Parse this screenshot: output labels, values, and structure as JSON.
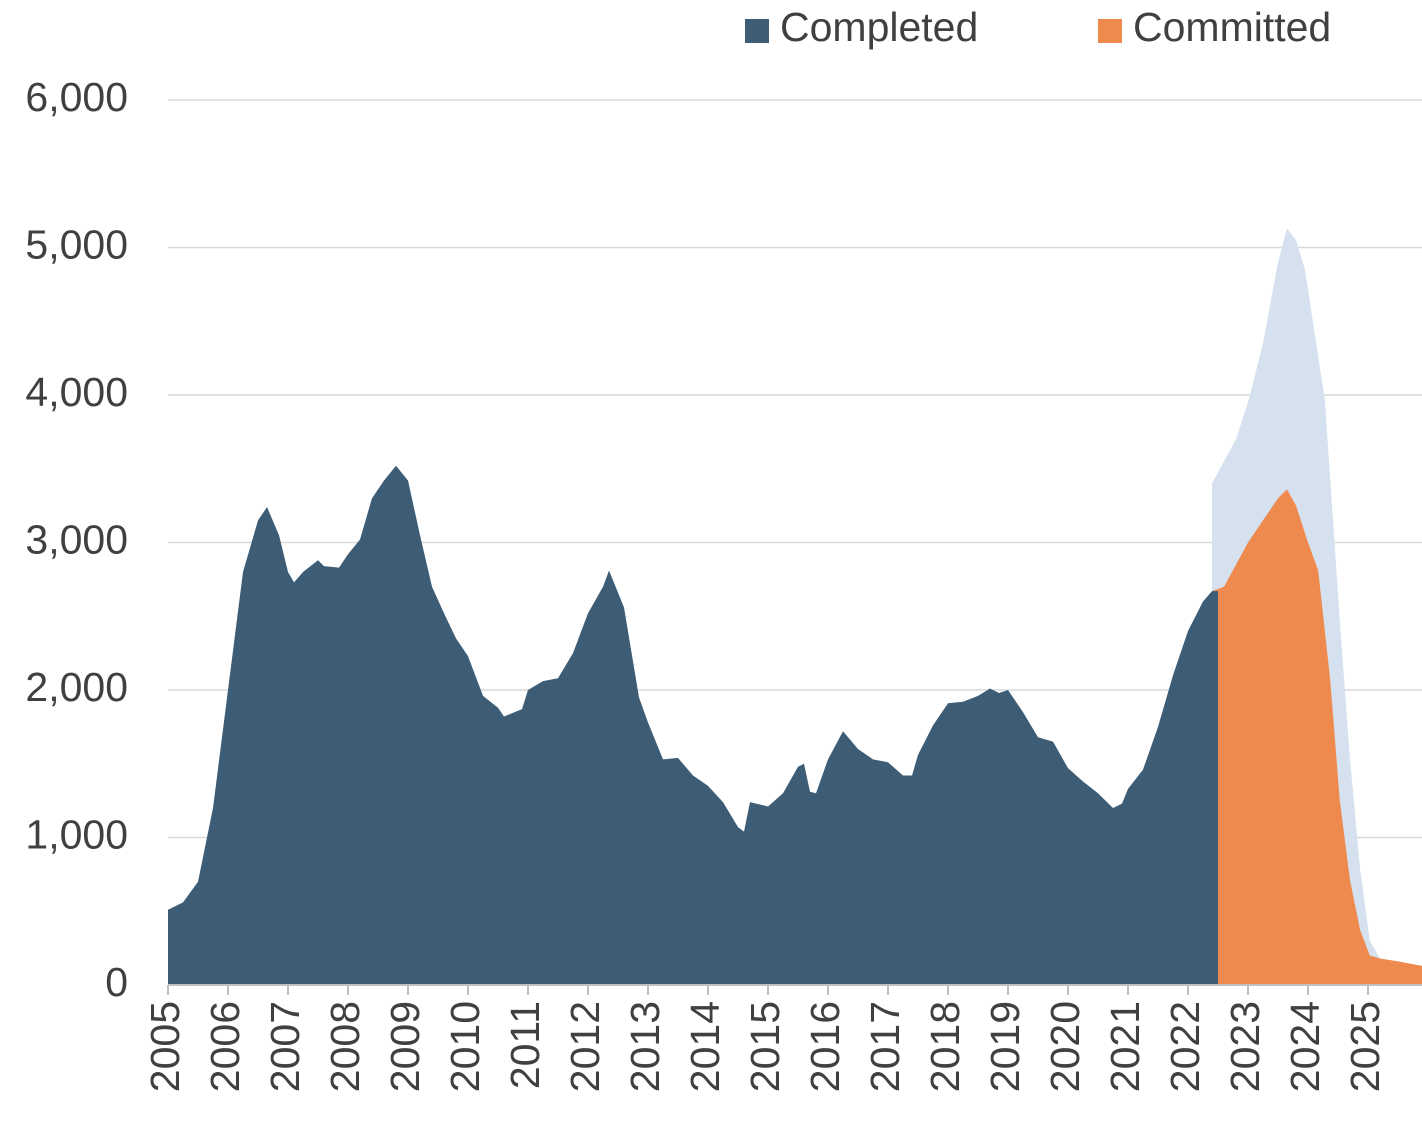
{
  "chart_data": {
    "type": "area",
    "series": [
      {
        "name": "Completed",
        "color": "#3d5d77",
        "x": [
          2005.0,
          2005.25,
          2005.5,
          2005.75,
          2006.0,
          2006.25,
          2006.5,
          2006.65,
          2006.85,
          2007.0,
          2007.1,
          2007.25,
          2007.5,
          2007.6,
          2007.85,
          2008.0,
          2008.2,
          2008.4,
          2008.6,
          2008.8,
          2009.0,
          2009.2,
          2009.4,
          2009.6,
          2009.8,
          2010.0,
          2010.25,
          2010.5,
          2010.6,
          2010.9,
          2011.0,
          2011.25,
          2011.5,
          2011.75,
          2012.0,
          2012.25,
          2012.35,
          2012.6,
          2012.85,
          2013.0,
          2013.25,
          2013.5,
          2013.75,
          2014.0,
          2014.25,
          2014.5,
          2014.6,
          2014.7,
          2015.0,
          2015.25,
          2015.5,
          2015.6,
          2015.7,
          2015.8,
          2016.0,
          2016.25,
          2016.5,
          2016.75,
          2017.0,
          2017.25,
          2017.4,
          2017.5,
          2017.75,
          2018.0,
          2018.25,
          2018.5,
          2018.7,
          2018.85,
          2019.0,
          2019.25,
          2019.5,
          2019.75,
          2020.0,
          2020.25,
          2020.5,
          2020.75,
          2020.9,
          2021.0,
          2021.25,
          2021.5,
          2021.75,
          2022.0,
          2022.25,
          2022.4,
          2022.5
        ],
        "values": [
          510,
          560,
          700,
          1200,
          2000,
          2800,
          3150,
          3240,
          3050,
          2800,
          2730,
          2800,
          2880,
          2840,
          2830,
          2920,
          3020,
          3300,
          3420,
          3520,
          3420,
          3050,
          2700,
          2520,
          2350,
          2230,
          1960,
          1880,
          1820,
          1870,
          2000,
          2060,
          2080,
          2250,
          2520,
          2700,
          2810,
          2560,
          1950,
          1780,
          1530,
          1540,
          1420,
          1350,
          1240,
          1070,
          1040,
          1240,
          1210,
          1300,
          1480,
          1500,
          1310,
          1300,
          1530,
          1720,
          1600,
          1530,
          1510,
          1420,
          1420,
          1560,
          1760,
          1910,
          1920,
          1960,
          2010,
          1980,
          2000,
          1850,
          1680,
          1650,
          1470,
          1380,
          1300,
          1200,
          1230,
          1330,
          1460,
          1750,
          2100,
          2400,
          2600,
          2670,
          2670
        ]
      },
      {
        "name": "Committed",
        "color": "#ef8a4f",
        "x": [
          2022.4,
          2022.6,
          2022.8,
          2023.0,
          2023.25,
          2023.5,
          2023.65,
          2023.8,
          2024.0,
          2024.17,
          2024.37,
          2024.53,
          2024.7,
          2024.87,
          2025.03,
          2025.2,
          2025.5,
          2025.9
        ],
        "values": [
          2670,
          2700,
          2850,
          3000,
          3150,
          3300,
          3360,
          3250,
          3000,
          2810,
          2070,
          1250,
          710,
          370,
          200,
          180,
          160,
          130
        ]
      },
      {
        "color": "#d5e1ee",
        "x": [
          2022.4,
          2022.6,
          2022.8,
          2023.0,
          2023.25,
          2023.5,
          2023.65,
          2023.8,
          2023.95,
          2024.08,
          2024.28,
          2024.53,
          2024.7,
          2024.87,
          2025.03,
          2025.2,
          2025.5,
          2025.9
        ],
        "values": [
          3400,
          3550,
          3700,
          3950,
          4350,
          4900,
          5130,
          5050,
          4850,
          4500,
          3970,
          2470,
          1530,
          780,
          300,
          180,
          160,
          130
        ]
      }
    ],
    "xlim": [
      2005,
      2025.9
    ],
    "xticks": [
      2005,
      2006,
      2007,
      2008,
      2009,
      2010,
      2011,
      2012,
      2013,
      2014,
      2015,
      2016,
      2017,
      2018,
      2019,
      2020,
      2021,
      2022,
      2023,
      2024,
      2025
    ],
    "ylim": [
      0,
      6000
    ],
    "yticks": [
      0,
      {
        "value": 1000,
        "label": "1,000"
      },
      {
        "value": 2000,
        "label": "2,000"
      },
      {
        "value": 3000,
        "label": "3,000"
      },
      {
        "value": 4000,
        "label": "4,000"
      },
      {
        "value": 5000,
        "label": "5,000"
      },
      {
        "value": 6000,
        "label": "6,000"
      }
    ],
    "grid": true
  }
}
